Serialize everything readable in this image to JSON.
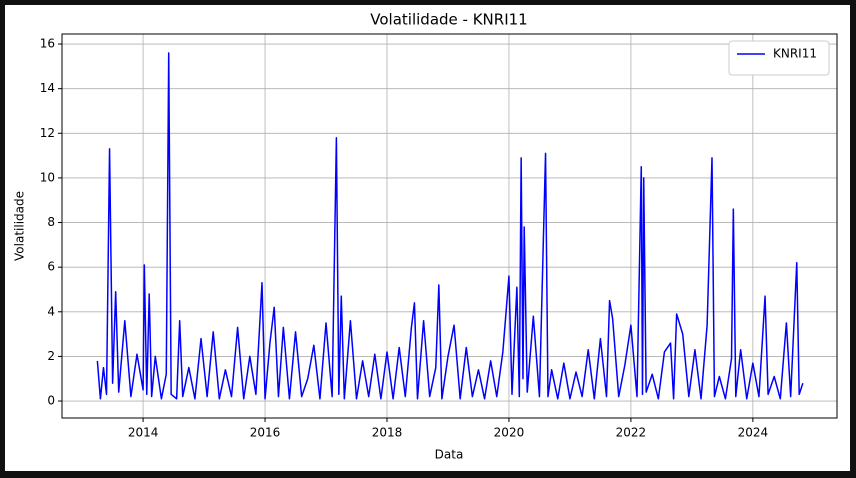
{
  "chart_data": {
    "type": "line",
    "title": "Volatilidade - KNRI11",
    "x_label": "Data",
    "y_label": "Volatilidade",
    "x": [
      2013.25,
      2013.3,
      2013.35,
      2013.4,
      2013.45,
      2013.5,
      2013.55,
      2013.6,
      2013.7,
      2013.8,
      2013.9,
      2014.0,
      2014.02,
      2014.06,
      2014.1,
      2014.14,
      2014.2,
      2014.3,
      2014.38,
      2014.42,
      2014.46,
      2014.55,
      2014.6,
      2014.65,
      2014.75,
      2014.85,
      2014.95,
      2015.05,
      2015.15,
      2015.25,
      2015.35,
      2015.45,
      2015.55,
      2015.65,
      2015.75,
      2015.85,
      2015.95,
      2016.0,
      2016.08,
      2016.15,
      2016.22,
      2016.3,
      2016.4,
      2016.5,
      2016.6,
      2016.7,
      2016.8,
      2016.9,
      2017.0,
      2017.1,
      2017.17,
      2017.21,
      2017.25,
      2017.3,
      2017.4,
      2017.5,
      2017.6,
      2017.7,
      2017.8,
      2017.9,
      2018.0,
      2018.1,
      2018.2,
      2018.3,
      2018.4,
      2018.45,
      2018.5,
      2018.6,
      2018.7,
      2018.8,
      2018.85,
      2018.9,
      2019.0,
      2019.1,
      2019.2,
      2019.3,
      2019.4,
      2019.5,
      2019.6,
      2019.7,
      2019.8,
      2019.9,
      2020.0,
      2020.05,
      2020.13,
      2020.17,
      2020.2,
      2020.23,
      2020.25,
      2020.3,
      2020.4,
      2020.5,
      2020.6,
      2020.64,
      2020.7,
      2020.8,
      2020.9,
      2021.0,
      2021.1,
      2021.2,
      2021.3,
      2021.4,
      2021.5,
      2021.6,
      2021.65,
      2021.7,
      2021.8,
      2021.9,
      2022.0,
      2022.1,
      2022.17,
      2022.19,
      2022.21,
      2022.25,
      2022.35,
      2022.45,
      2022.55,
      2022.65,
      2022.7,
      2022.75,
      2022.85,
      2022.95,
      2023.05,
      2023.15,
      2023.25,
      2023.33,
      2023.37,
      2023.45,
      2023.55,
      2023.65,
      2023.68,
      2023.72,
      2023.8,
      2023.9,
      2024.0,
      2024.1,
      2024.2,
      2024.25,
      2024.35,
      2024.45,
      2024.55,
      2024.62,
      2024.72,
      2024.76,
      2024.82
    ],
    "series": [
      {
        "name": "KNRI11",
        "color": "#0000ff",
        "values": [
          1.8,
          0.1,
          1.5,
          0.3,
          11.3,
          0.8,
          4.9,
          0.4,
          3.6,
          0.2,
          2.1,
          0.5,
          6.1,
          0.3,
          4.8,
          0.2,
          2.0,
          0.1,
          1.2,
          15.6,
          0.3,
          0.1,
          3.6,
          0.2,
          1.5,
          0.1,
          2.8,
          0.2,
          3.1,
          0.1,
          1.4,
          0.2,
          3.3,
          0.1,
          2.0,
          0.3,
          5.3,
          0.1,
          2.6,
          4.2,
          0.2,
          3.3,
          0.1,
          3.1,
          0.2,
          1.0,
          2.5,
          0.1,
          3.5,
          0.2,
          11.8,
          0.3,
          4.7,
          0.1,
          3.6,
          0.1,
          1.8,
          0.2,
          2.1,
          0.1,
          2.2,
          0.1,
          2.4,
          0.2,
          3.3,
          4.4,
          0.1,
          3.6,
          0.2,
          1.5,
          5.2,
          0.1,
          2.0,
          3.4,
          0.1,
          2.4,
          0.2,
          1.4,
          0.1,
          1.8,
          0.2,
          2.2,
          5.6,
          0.3,
          5.1,
          0.2,
          10.9,
          1.0,
          7.8,
          0.4,
          3.8,
          0.2,
          11.1,
          0.2,
          1.4,
          0.1,
          1.7,
          0.1,
          1.3,
          0.2,
          2.3,
          0.1,
          2.8,
          0.2,
          4.5,
          3.7,
          0.2,
          1.6,
          3.4,
          0.2,
          10.5,
          0.3,
          10.0,
          0.4,
          1.2,
          0.1,
          2.2,
          2.6,
          0.1,
          3.9,
          3.0,
          0.2,
          2.3,
          0.1,
          3.4,
          10.9,
          0.2,
          1.1,
          0.1,
          1.9,
          8.6,
          0.2,
          2.3,
          0.1,
          1.7,
          0.2,
          4.7,
          0.3,
          1.1,
          0.1,
          3.5,
          0.2,
          6.2,
          0.3,
          0.8
        ]
      }
    ],
    "xlim": [
      2012.67,
      2025.38
    ],
    "xticks": [
      2014,
      2016,
      2018,
      2020,
      2022,
      2024
    ],
    "ylim": [
      -0.76,
      16.45
    ],
    "yticks": [
      0,
      2,
      4,
      6,
      8,
      10,
      12,
      14,
      16
    ],
    "grid": true,
    "legend": "upper right"
  }
}
